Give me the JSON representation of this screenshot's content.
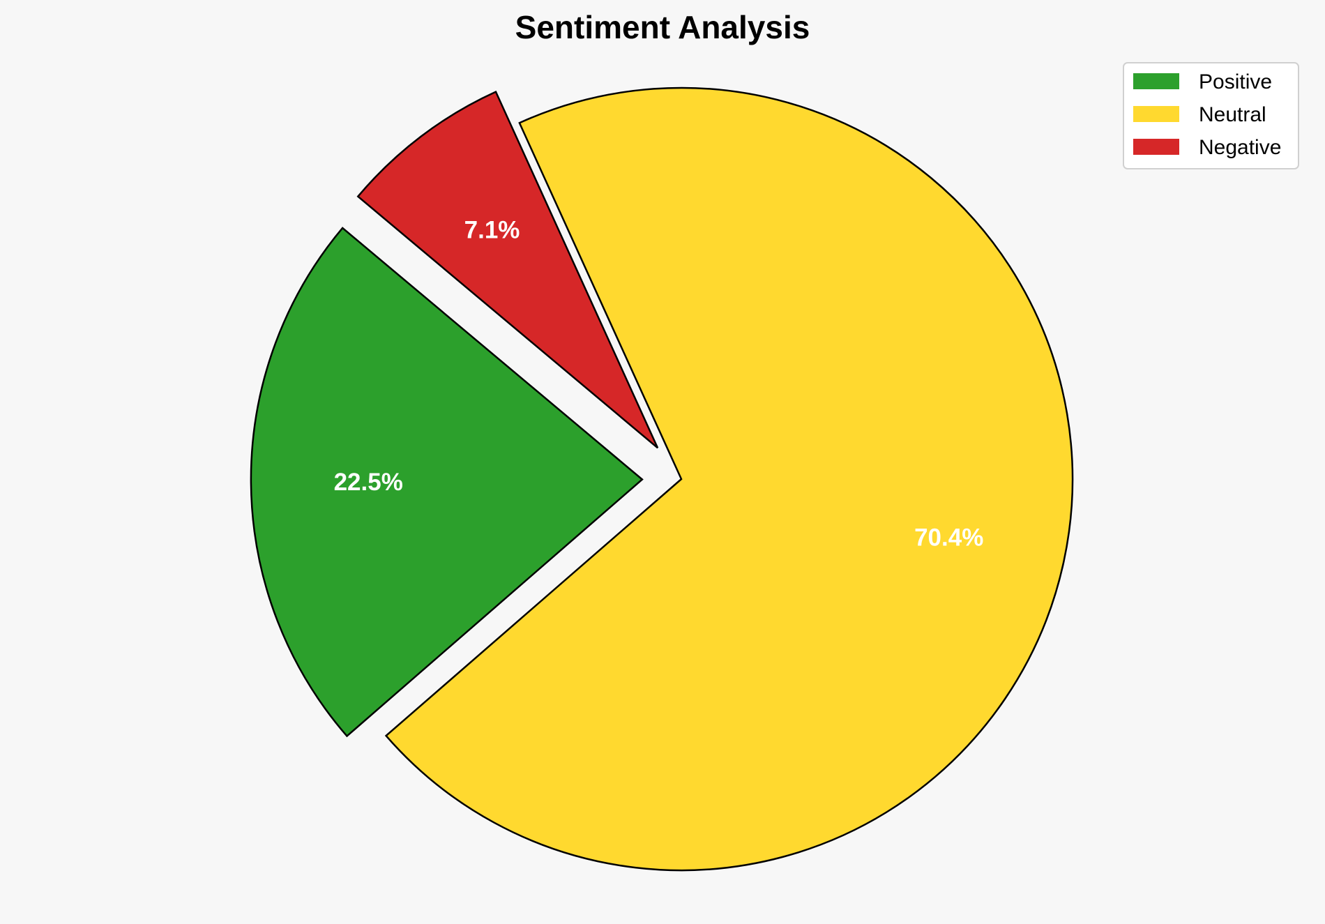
{
  "chart_data": {
    "type": "pie",
    "title": "Sentiment Analysis",
    "categories": [
      "Positive",
      "Neutral",
      "Negative"
    ],
    "values": [
      22.5,
      70.4,
      7.1
    ],
    "labels": [
      "22.5%",
      "70.4%",
      "7.1%"
    ],
    "colors": [
      "#2ca02c",
      "#ffd92f",
      "#d62728"
    ],
    "explode": [
      0.1,
      0,
      0.1
    ],
    "start_angle_deg": 140,
    "direction": "counterclockwise",
    "edge_color": "#000000",
    "legend": {
      "placement": "top-right",
      "entries": [
        "Positive",
        "Neutral",
        "Negative"
      ]
    }
  }
}
